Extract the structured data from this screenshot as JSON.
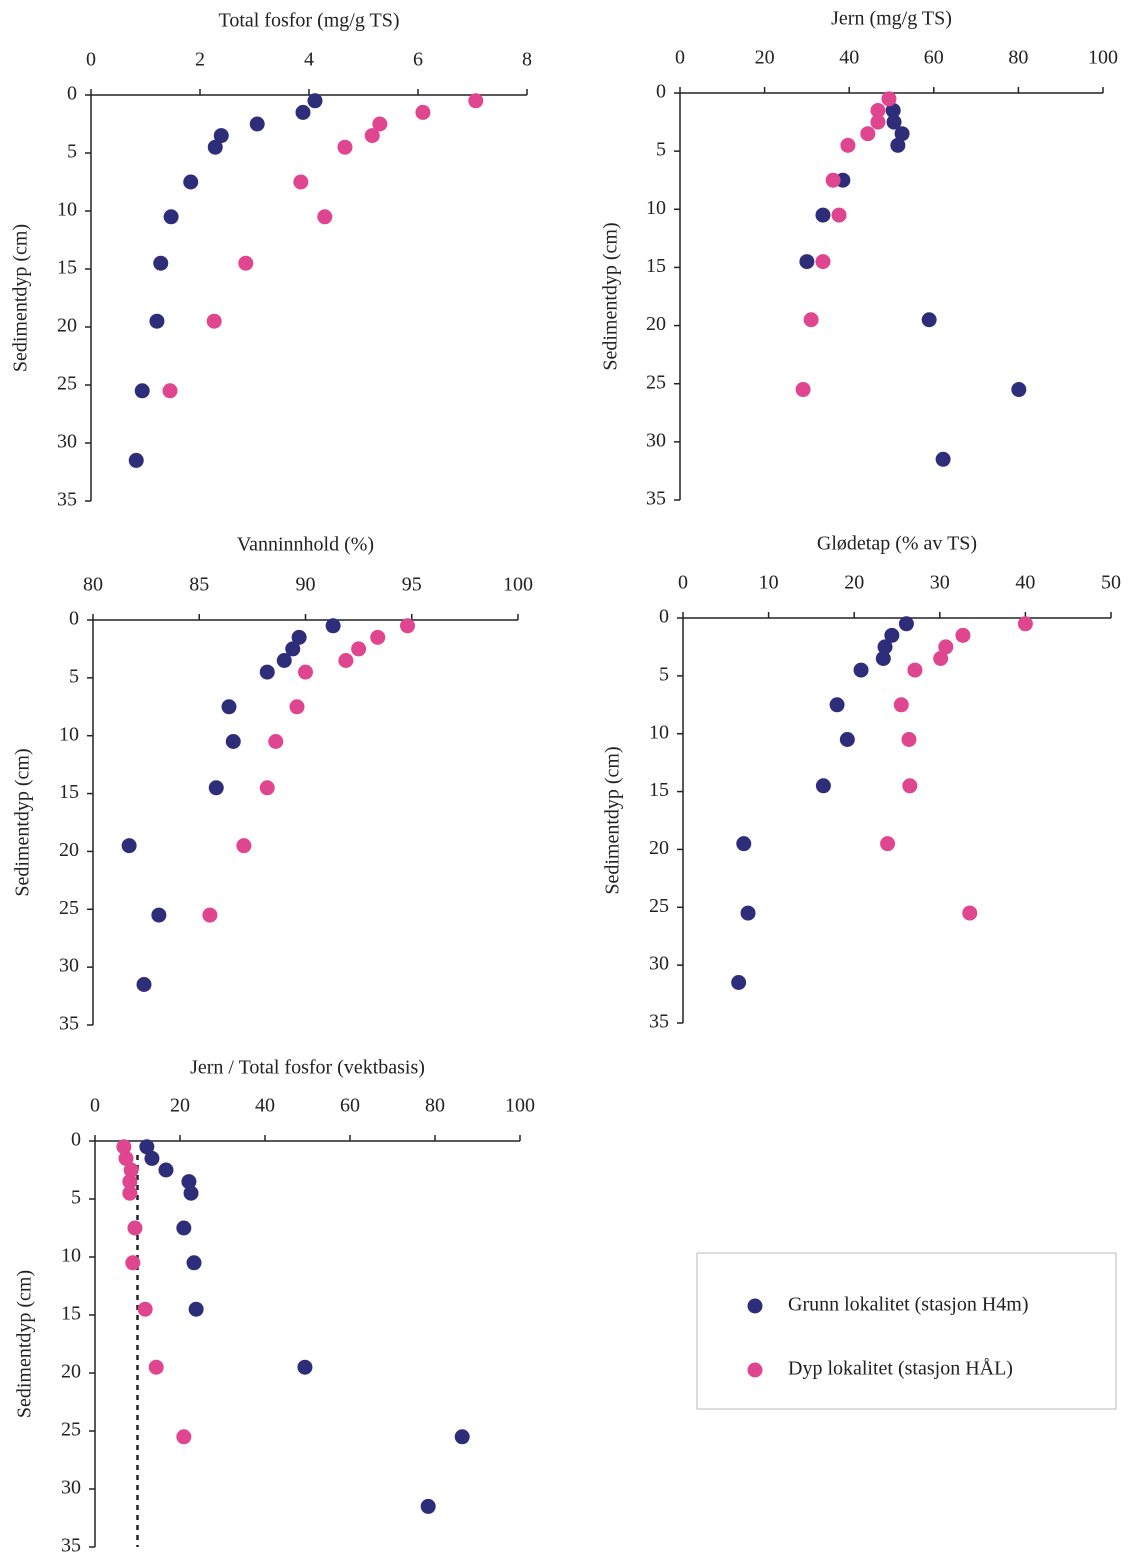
{
  "chart_data": [
    {
      "type": "scatter",
      "title": "Total fosfor (mg/g TS)",
      "y_label": "Sedimentdyp (cm)",
      "xlim": [
        0,
        8
      ],
      "xticks": [
        0,
        2,
        4,
        6,
        8
      ],
      "ylim": [
        0,
        35
      ],
      "yticks": [
        0,
        5,
        10,
        15,
        20,
        25,
        30,
        35
      ],
      "y_inverted": true,
      "series": [
        {
          "name": "Grunn lokalitet (stasjon H4m)",
          "color": "#2e2d7a",
          "x": [
            4.11,
            3.89,
            3.05,
            2.39,
            2.28,
            1.83,
            1.47,
            1.28,
            1.21,
            0.94,
            0.83
          ],
          "y": [
            0.5,
            1.5,
            2.5,
            3.5,
            4.5,
            7.5,
            10.5,
            14.5,
            19.5,
            25.5,
            31.5
          ]
        },
        {
          "name": "Dyp lokalitet (stasjon HÅL)",
          "color": "#e0458f",
          "x": [
            7.06,
            6.09,
            5.3,
            5.16,
            4.66,
            3.85,
            4.29,
            2.84,
            2.26,
            1.45
          ],
          "y": [
            0.5,
            1.5,
            2.5,
            3.5,
            4.5,
            7.5,
            10.5,
            14.5,
            19.5,
            25.5
          ]
        }
      ]
    },
    {
      "type": "scatter",
      "title": "Jern (mg/g TS)",
      "y_label": "Sedimentdyp (cm)",
      "xlim": [
        0,
        100
      ],
      "xticks": [
        0,
        20,
        40,
        60,
        80,
        100
      ],
      "ylim": [
        0,
        35
      ],
      "yticks": [
        0,
        5,
        10,
        15,
        20,
        25,
        30,
        35
      ],
      "y_inverted": true,
      "series": [
        {
          "color": "#2e2d7a",
          "x": [
            50.4,
            50.6,
            52.5,
            51.5,
            38.5,
            33.8,
            30.0,
            58.9,
            80.1,
            62.2
          ],
          "y": [
            1.5,
            2.5,
            3.5,
            4.5,
            7.5,
            10.5,
            14.5,
            19.5,
            25.5,
            31.5
          ]
        },
        {
          "color": "#e0458f",
          "x": [
            49.4,
            46.8,
            46.8,
            44.4,
            39.7,
            36.2,
            37.6,
            33.8,
            31.0,
            29.1
          ],
          "y": [
            0.5,
            1.5,
            2.5,
            3.5,
            4.5,
            7.5,
            10.5,
            14.5,
            19.5,
            25.5
          ]
        }
      ]
    },
    {
      "type": "scatter",
      "title": "Vanninnhold (%)",
      "y_label": "Sedimentdyp (cm)",
      "xlim": [
        80,
        100
      ],
      "xticks": [
        80,
        85,
        90,
        95,
        100
      ],
      "ylim": [
        0,
        35
      ],
      "yticks": [
        0,
        5,
        10,
        15,
        20,
        25,
        30,
        35
      ],
      "y_inverted": true,
      "series": [
        {
          "color": "#2e2d7a",
          "x": [
            91.3,
            89.7,
            89.4,
            89.0,
            88.2,
            86.4,
            86.6,
            85.8,
            81.7,
            83.1,
            82.4
          ],
          "y": [
            0.5,
            1.5,
            2.5,
            3.5,
            4.5,
            7.5,
            10.5,
            14.5,
            19.5,
            25.5,
            31.5
          ]
        },
        {
          "color": "#e0458f",
          "x": [
            94.8,
            93.4,
            92.5,
            91.9,
            90.0,
            89.6,
            88.6,
            88.2,
            87.1,
            85.5
          ],
          "y": [
            0.5,
            1.5,
            2.5,
            3.5,
            4.5,
            7.5,
            10.5,
            14.5,
            19.5,
            25.5
          ]
        }
      ]
    },
    {
      "type": "scatter",
      "title": "Glødetap (% av TS)",
      "y_label": "Sedimentdyp (cm)",
      "xlim": [
        0,
        50
      ],
      "xticks": [
        0,
        10,
        20,
        30,
        40,
        50
      ],
      "ylim": [
        0,
        35
      ],
      "yticks": [
        0,
        5,
        10,
        15,
        20,
        25,
        30,
        35
      ],
      "y_inverted": true,
      "series": [
        {
          "color": "#2e2d7a",
          "x": [
            26.1,
            24.4,
            23.6,
            23.4,
            20.8,
            18.0,
            19.2,
            16.4,
            7.1,
            7.6,
            6.5
          ],
          "y": [
            0.5,
            1.5,
            2.5,
            3.5,
            4.5,
            7.5,
            10.5,
            14.5,
            19.5,
            25.5,
            31.5
          ]
        },
        {
          "color": "#e0458f",
          "x": [
            40.0,
            32.7,
            30.7,
            30.1,
            27.1,
            25.5,
            26.4,
            26.5,
            23.9,
            33.5
          ],
          "y": [
            0.5,
            1.5,
            2.5,
            3.5,
            4.5,
            7.5,
            10.5,
            14.5,
            19.5,
            25.5
          ]
        }
      ]
    },
    {
      "type": "scatter",
      "title": "Jern / Total fosfor (vektbasis)",
      "y_label": "Sedimentdyp (cm)",
      "xlim": [
        0,
        100
      ],
      "xticks": [
        0,
        20,
        40,
        60,
        80,
        100
      ],
      "ylim": [
        0,
        35
      ],
      "yticks": [
        0,
        5,
        10,
        15,
        20,
        25,
        30,
        35
      ],
      "y_inverted": true,
      "reference_x": 10,
      "series": [
        {
          "color": "#2e2d7a",
          "x": [
            12.2,
            13.4,
            16.7,
            22.1,
            22.6,
            20.9,
            23.3,
            23.8,
            49.4,
            86.4,
            78.4
          ],
          "y": [
            0.5,
            1.5,
            2.5,
            3.5,
            4.5,
            7.5,
            10.5,
            14.5,
            19.5,
            25.5,
            31.5
          ]
        },
        {
          "color": "#e0458f",
          "x": [
            6.8,
            7.3,
            8.5,
            8.2,
            8.2,
            9.4,
            8.9,
            11.8,
            14.4,
            20.9
          ],
          "y": [
            0.5,
            1.5,
            2.5,
            3.5,
            4.5,
            7.5,
            10.5,
            14.5,
            19.5,
            25.5
          ]
        }
      ]
    }
  ]
}
